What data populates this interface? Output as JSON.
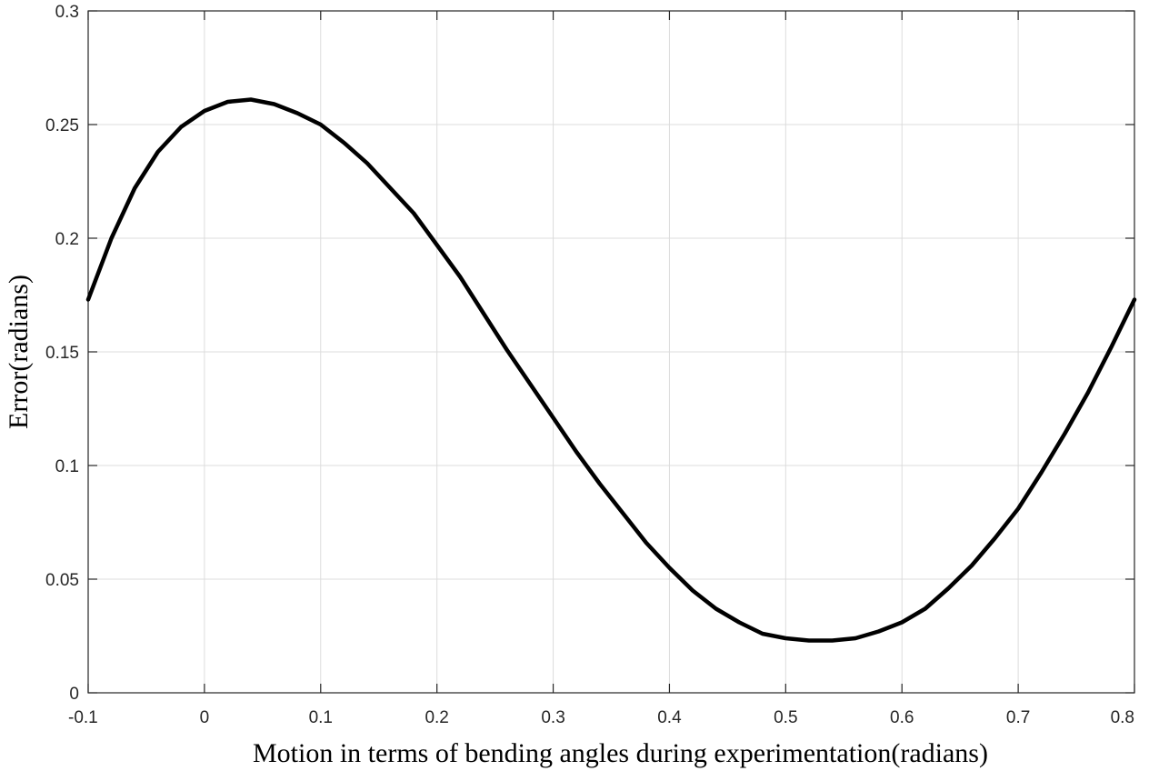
{
  "chart_data": {
    "type": "line",
    "title": "",
    "xlabel": "Motion in terms of bending angles during experimentation(radians)",
    "ylabel": "Error(radians)",
    "xlim": [
      -0.1,
      0.8
    ],
    "ylim": [
      0,
      0.3
    ],
    "grid": true,
    "x_ticks": [
      -0.1,
      0,
      0.1,
      0.2,
      0.3,
      0.4,
      0.5,
      0.6,
      0.7,
      0.8
    ],
    "y_ticks": [
      0,
      0.05,
      0.1,
      0.15,
      0.2,
      0.25,
      0.3
    ],
    "x_tick_labels": [
      "-0.1",
      "0",
      "0.1",
      "0.2",
      "0.3",
      "0.4",
      "0.5",
      "0.6",
      "0.7",
      "0.8"
    ],
    "y_tick_labels": [
      "0",
      "0.05",
      "0.1",
      "0.15",
      "0.2",
      "0.25",
      "0.3"
    ],
    "series": [
      {
        "color": "#000000",
        "x": [
          -0.1,
          -0.08,
          -0.06,
          -0.04,
          -0.02,
          0.0,
          0.02,
          0.04,
          0.06,
          0.08,
          0.1,
          0.12,
          0.14,
          0.16,
          0.18,
          0.2,
          0.22,
          0.24,
          0.26,
          0.28,
          0.3,
          0.32,
          0.34,
          0.36,
          0.38,
          0.4,
          0.42,
          0.44,
          0.46,
          0.48,
          0.5,
          0.52,
          0.54,
          0.56,
          0.58,
          0.6,
          0.62,
          0.64,
          0.66,
          0.68,
          0.7,
          0.72,
          0.74,
          0.76,
          0.78,
          0.8
        ],
        "y": [
          0.173,
          0.2,
          0.222,
          0.238,
          0.249,
          0.256,
          0.26,
          0.261,
          0.259,
          0.255,
          0.25,
          0.242,
          0.233,
          0.222,
          0.211,
          0.197,
          0.183,
          0.167,
          0.151,
          0.136,
          0.121,
          0.106,
          0.092,
          0.079,
          0.066,
          0.055,
          0.045,
          0.037,
          0.031,
          0.026,
          0.024,
          0.023,
          0.023,
          0.024,
          0.027,
          0.031,
          0.037,
          0.046,
          0.056,
          0.068,
          0.081,
          0.097,
          0.114,
          0.132,
          0.152,
          0.173
        ]
      }
    ]
  }
}
